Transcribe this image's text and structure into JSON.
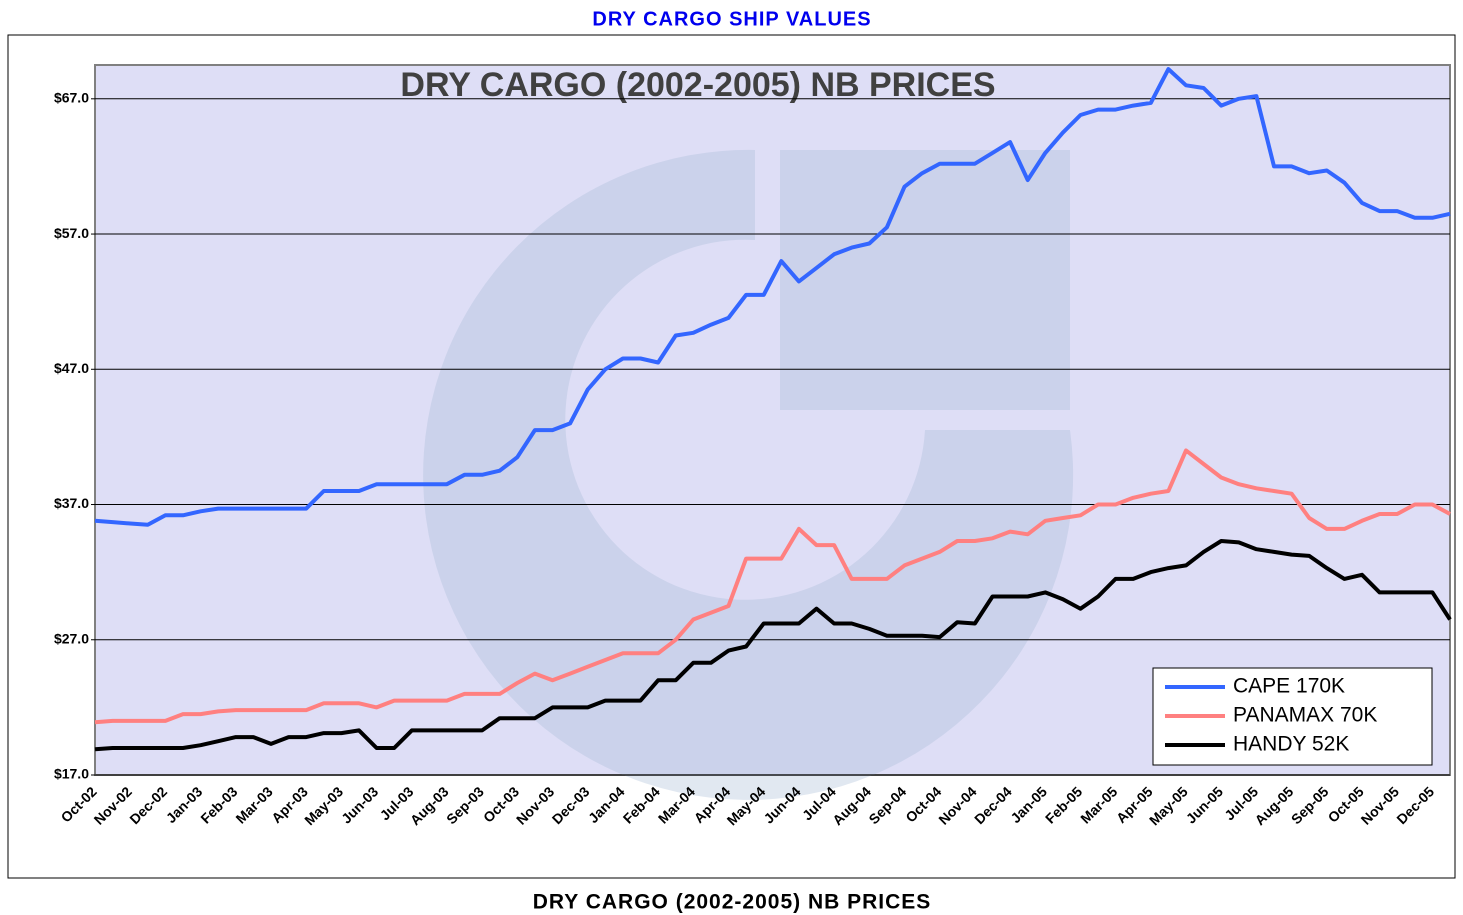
{
  "page_title": "DRY CARGO SHIP VALUES",
  "caption": "DRY CARGO (2002-2005) NB PRICES",
  "chart_data": {
    "type": "line",
    "title": "DRY CARGO (2002-2005) NB PRICES",
    "categories": [
      "Oct-02",
      null,
      "Nov-02",
      null,
      "Dec-02",
      null,
      "Jan-03",
      null,
      "Feb-03",
      null,
      "Mar-03",
      null,
      "Apr-03",
      null,
      "May-03",
      null,
      "Jun-03",
      null,
      "Jul-03",
      null,
      "Aug-03",
      null,
      "Sep-03",
      null,
      "Oct-03",
      null,
      "Nov-03",
      null,
      "Dec-03",
      null,
      "Jan-04",
      null,
      "Feb-04",
      null,
      "Mar-04",
      null,
      "Apr-04",
      null,
      "May-04",
      null,
      "Jun-04",
      null,
      "Jul-04",
      null,
      "Aug-04",
      null,
      "Sep-04",
      null,
      "Oct-04",
      null,
      "Nov-04",
      null,
      "Dec-04",
      null,
      "Jan-05",
      null,
      "Feb-05",
      null,
      "Mar-05",
      null,
      "Apr-05",
      null,
      "May-05",
      null,
      "Jun-05",
      null,
      "Jul-05",
      null,
      "Aug-05",
      null,
      "Sep-05",
      null,
      "Oct-05",
      null,
      "Nov-05",
      null,
      "Dec-05",
      null
    ],
    "series": [
      {
        "name": "CAPE 170K",
        "color": "#3366ff",
        "values": [
          35.8,
          35.7,
          35.6,
          35.5,
          36.2,
          36.2,
          36.5,
          36.7,
          36.7,
          36.7,
          36.7,
          36.7,
          36.7,
          38.0,
          38.0,
          38.0,
          38.5,
          38.5,
          38.5,
          38.5,
          38.5,
          39.2,
          39.2,
          39.5,
          40.5,
          42.5,
          42.5,
          43.0,
          45.5,
          47.0,
          47.8,
          47.8,
          47.5,
          49.5,
          49.7,
          50.3,
          50.8,
          52.5,
          52.5,
          55.0,
          53.5,
          54.5,
          55.5,
          56.0,
          56.3,
          57.5,
          60.5,
          61.5,
          62.2,
          62.2,
          62.2,
          63.0,
          63.8,
          61.0,
          63.0,
          64.5,
          65.8,
          66.2,
          66.2,
          66.5,
          66.7,
          69.2,
          68.0,
          67.8,
          66.5,
          67.0,
          67.2,
          62.0,
          62.0,
          61.5,
          61.7,
          60.8,
          59.3,
          58.7,
          58.7,
          58.2,
          58.2,
          58.5
        ]
      },
      {
        "name": "PANAMAX 70K",
        "color": "#ff8080",
        "values": [
          20.9,
          21.0,
          21.0,
          21.0,
          21.0,
          21.5,
          21.5,
          21.7,
          21.8,
          21.8,
          21.8,
          21.8,
          21.8,
          22.3,
          22.3,
          22.3,
          22.0,
          22.5,
          22.5,
          22.5,
          22.5,
          23.0,
          23.0,
          23.0,
          23.8,
          24.5,
          24.0,
          24.5,
          25.0,
          25.5,
          26.0,
          26.0,
          26.0,
          27.0,
          28.5,
          29.0,
          29.5,
          33.0,
          33.0,
          33.0,
          35.2,
          34.0,
          34.0,
          31.5,
          31.5,
          31.5,
          32.5,
          33.0,
          33.5,
          34.3,
          34.3,
          34.5,
          35.0,
          34.8,
          35.8,
          36.0,
          36.2,
          37.0,
          37.0,
          37.5,
          37.8,
          38.0,
          41.0,
          40.0,
          39.0,
          38.5,
          38.2,
          38.0,
          37.8,
          36.0,
          35.2,
          35.2,
          35.8,
          36.3,
          36.3,
          37.0,
          37.0,
          36.3
        ]
      },
      {
        "name": "HANDY 52K",
        "color": "#000000",
        "values": [
          18.9,
          19.0,
          19.0,
          19.0,
          19.0,
          19.0,
          19.2,
          19.5,
          19.8,
          19.8,
          19.3,
          19.8,
          19.8,
          20.1,
          20.1,
          20.3,
          19.0,
          19.0,
          20.3,
          20.3,
          20.3,
          20.3,
          20.3,
          21.2,
          21.2,
          21.2,
          22.0,
          22.0,
          22.0,
          22.5,
          22.5,
          22.5,
          24.0,
          24.0,
          25.3,
          25.3,
          26.2,
          26.5,
          28.2,
          28.2,
          28.2,
          29.3,
          28.2,
          28.2,
          27.8,
          27.3,
          27.3,
          27.3,
          27.2,
          28.3,
          28.2,
          30.2,
          30.2,
          30.2,
          30.5,
          30.0,
          29.3,
          30.2,
          31.5,
          31.5,
          32.0,
          32.3,
          32.5,
          33.5,
          34.3,
          34.2,
          33.7,
          33.5,
          33.3,
          33.2,
          32.3,
          31.5,
          31.8,
          30.5,
          30.5,
          30.5,
          30.5,
          28.5
        ]
      }
    ],
    "ylim": [
      17,
      69.5
    ],
    "yticks": [
      {
        "value": 17,
        "label": "$17.0"
      },
      {
        "value": 27,
        "label": "$27.0"
      },
      {
        "value": 37,
        "label": "$37.0"
      },
      {
        "value": 47,
        "label": "$47.0"
      },
      {
        "value": 57,
        "label": "$57.0"
      },
      {
        "value": 67,
        "label": "$67.0"
      }
    ],
    "grid": true,
    "legend": "lower right"
  }
}
